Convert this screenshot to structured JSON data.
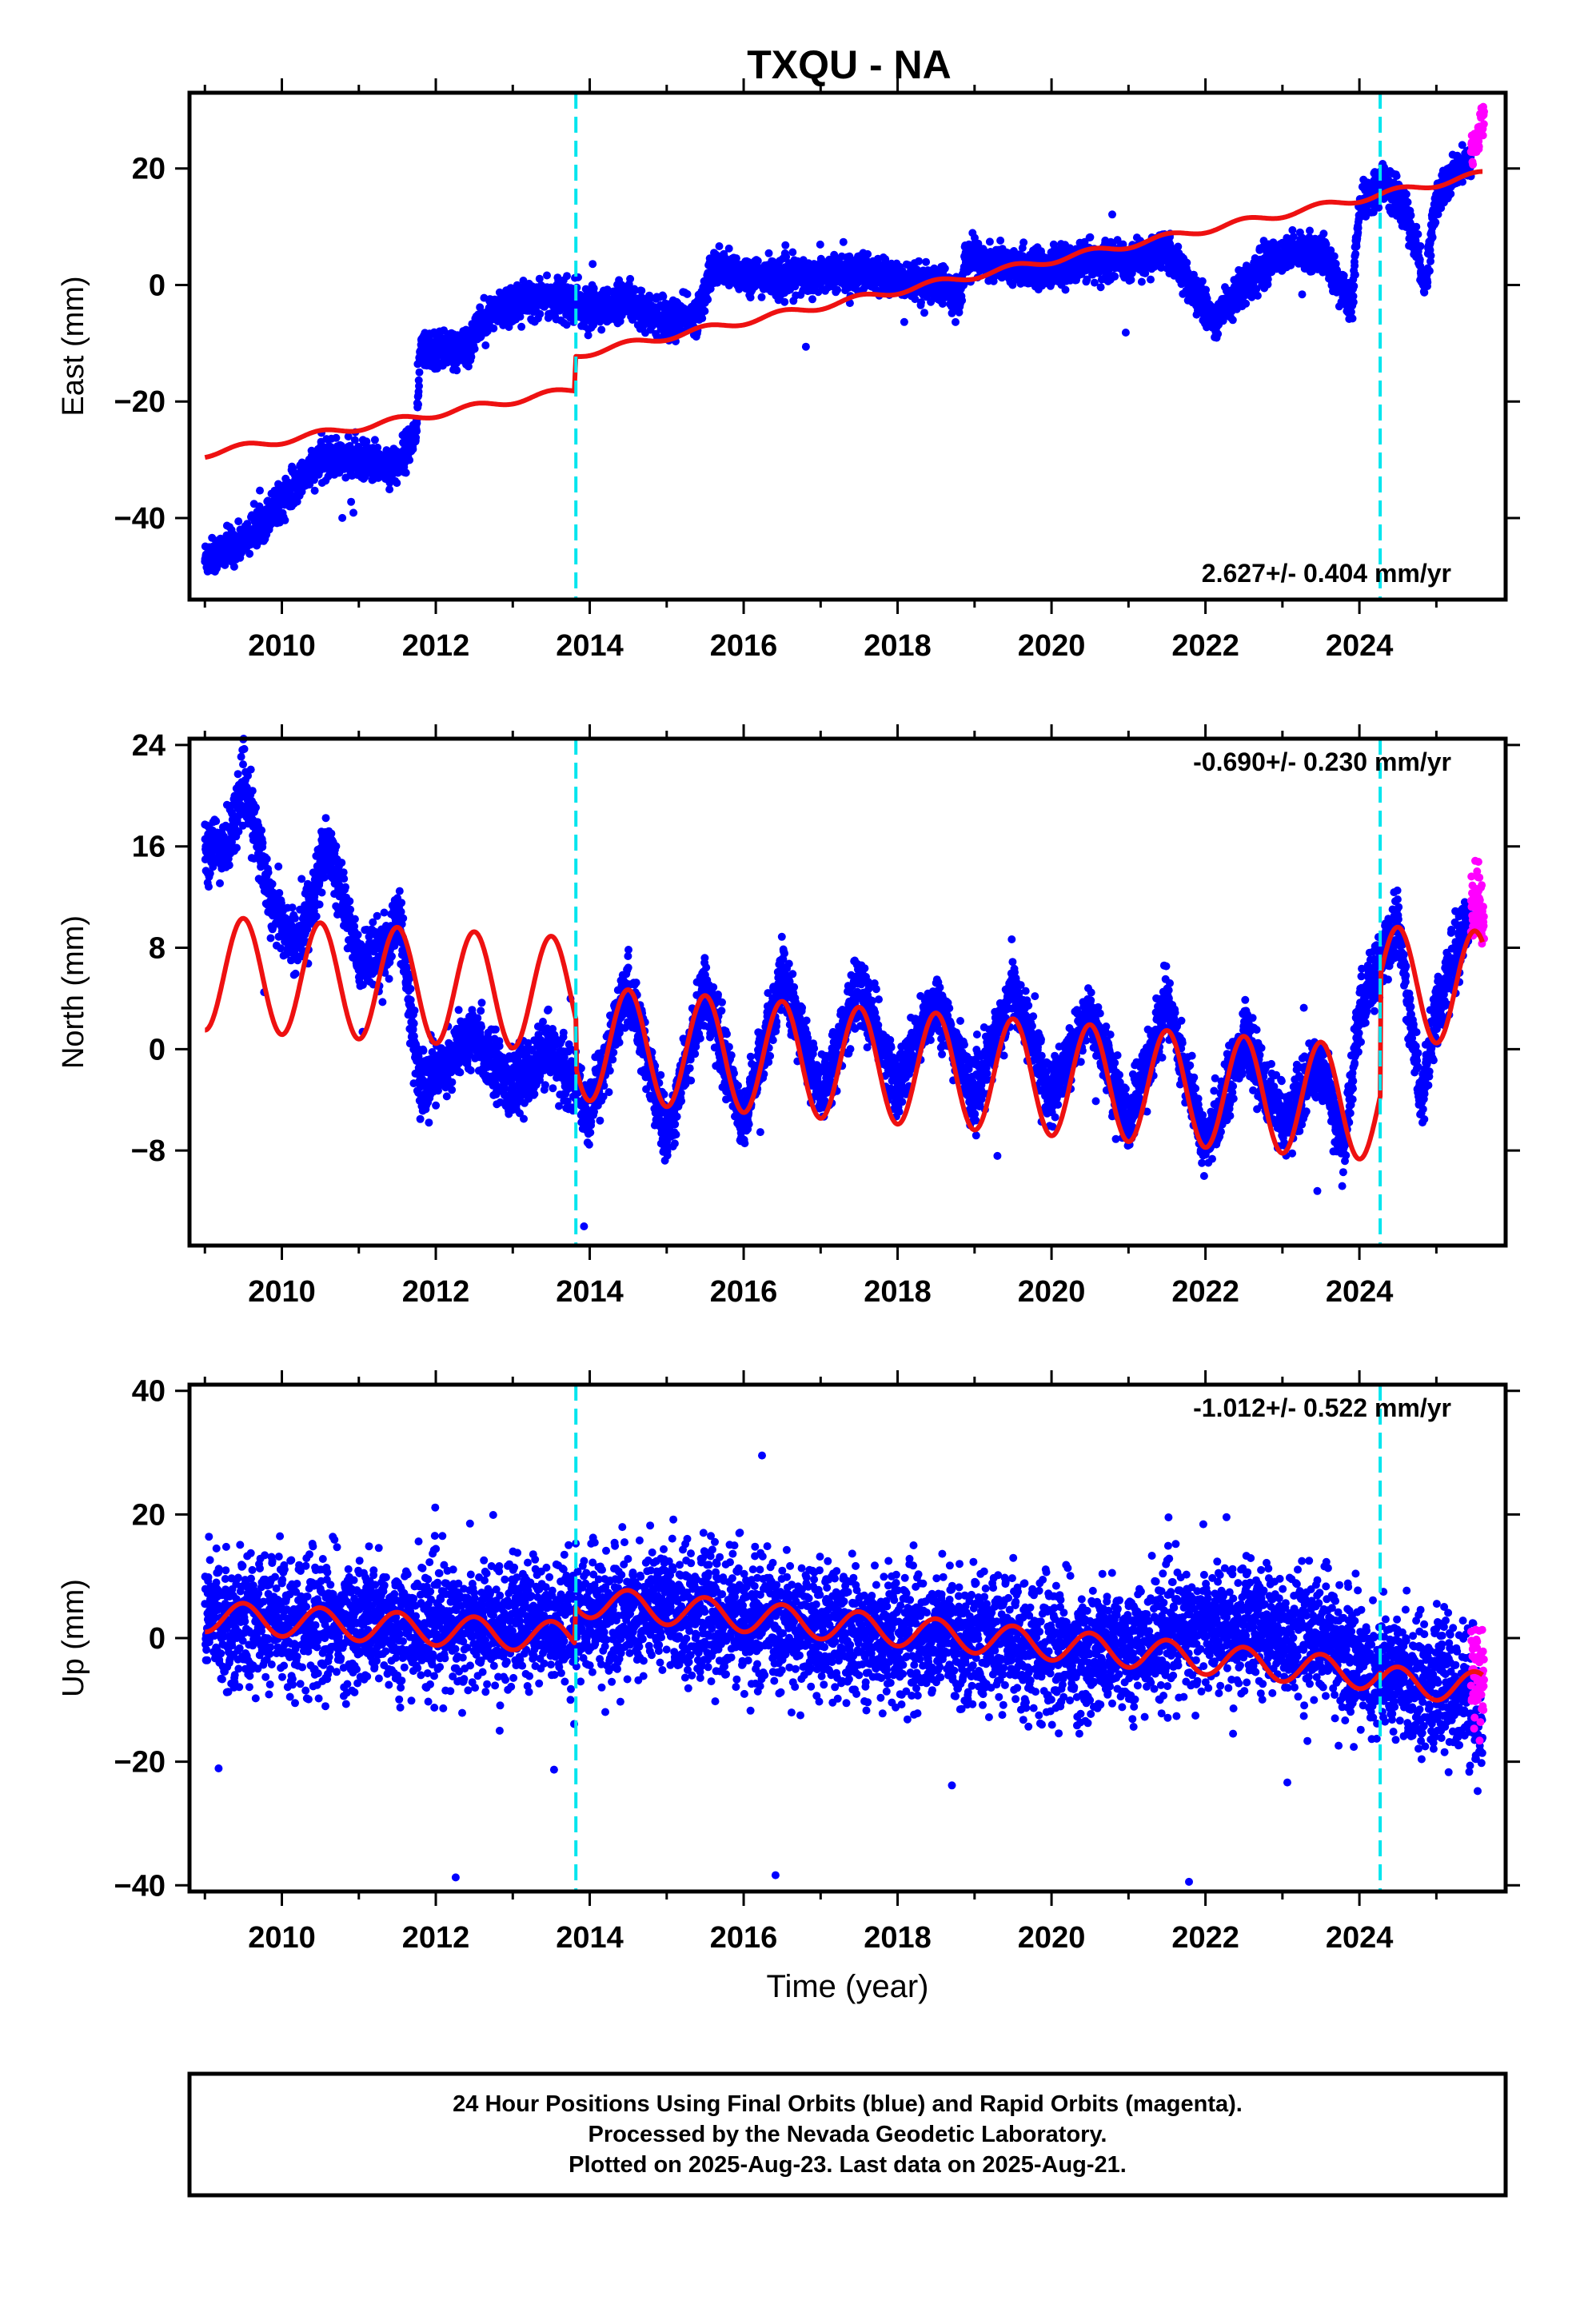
{
  "title": "TXQU - NA",
  "footer": {
    "line1": "24 Hour Positions Using Final Orbits (blue) and Rapid Orbits (magenta).",
    "line2": "Processed by the Nevada Geodetic Laboratory.",
    "line3": "Plotted on 2025-Aug-23. Last data on 2025-Aug-21."
  },
  "colors": {
    "final_orbits": "#0000ff",
    "rapid_orbits": "#ff00ff",
    "model": "#ee1111",
    "events": "#00e5ee"
  },
  "chart_data": [
    {
      "type": "scatter",
      "name": "east",
      "ylabel": "East (mm)",
      "xlabel": "",
      "xlim": [
        2008.8,
        2025.9
      ],
      "ylim": [
        -54,
        33
      ],
      "xticks": [
        2010,
        2012,
        2014,
        2016,
        2018,
        2020,
        2022,
        2024
      ],
      "xtick_labels": [
        "2010",
        "2012",
        "2014",
        "2016",
        "2018",
        "2020",
        "2022",
        "2024"
      ],
      "yticks": [
        -40,
        -20,
        0,
        20
      ],
      "ytick_labels": [
        "−40",
        "−20",
        "0",
        "20"
      ],
      "rate_label": "2.627+/- 0.404 mm/yr",
      "rate_position": "bottom-right",
      "event_lines_x": [
        2013.82,
        2024.27
      ],
      "final_trace": [
        [
          2009.0,
          -47
        ],
        [
          2009.5,
          -44
        ],
        [
          2010.0,
          -37
        ],
        [
          2010.5,
          -30
        ],
        [
          2011.0,
          -30
        ],
        [
          2011.5,
          -31
        ],
        [
          2011.75,
          -25
        ],
        [
          2011.8,
          -11
        ],
        [
          2012.4,
          -11
        ],
        [
          2012.6,
          -6
        ],
        [
          2013.0,
          -3
        ],
        [
          2013.5,
          -2
        ],
        [
          2014.0,
          -4
        ],
        [
          2014.5,
          -3
        ],
        [
          2015.0,
          -6
        ],
        [
          2015.4,
          -5
        ],
        [
          2015.6,
          3
        ],
        [
          2016.0,
          2
        ],
        [
          2016.5,
          1
        ],
        [
          2017.0,
          2
        ],
        [
          2017.5,
          2
        ],
        [
          2018.0,
          1
        ],
        [
          2018.5,
          0
        ],
        [
          2018.8,
          -2
        ],
        [
          2018.9,
          5
        ],
        [
          2019.5,
          3
        ],
        [
          2020.0,
          3
        ],
        [
          2020.5,
          4
        ],
        [
          2021.0,
          4
        ],
        [
          2021.5,
          6
        ],
        [
          2021.8,
          0
        ],
        [
          2022.1,
          -6
        ],
        [
          2022.5,
          0
        ],
        [
          2022.9,
          5
        ],
        [
          2023.5,
          6
        ],
        [
          2023.9,
          -4
        ],
        [
          2024.0,
          13
        ],
        [
          2024.3,
          18
        ],
        [
          2024.6,
          13
        ],
        [
          2024.85,
          0
        ],
        [
          2025.0,
          15
        ],
        [
          2025.3,
          20
        ],
        [
          2025.45,
          21
        ]
      ],
      "rapid_trace": [
        [
          2025.45,
          23
        ],
        [
          2025.55,
          26
        ],
        [
          2025.62,
          29
        ]
      ],
      "model_trace": [
        [
          2009.0,
          -29
        ],
        [
          2013.8,
          -18
        ],
        [
          2013.82,
          -12
        ],
        [
          2025.6,
          19
        ]
      ],
      "model_annual_amp": 0.6,
      "final_noise": 1.5,
      "rapid_noise": 1.6
    },
    {
      "type": "scatter",
      "name": "north",
      "ylabel": "North (mm)",
      "xlabel": "",
      "xlim": [
        2008.8,
        2025.9
      ],
      "ylim": [
        -15.5,
        24.5
      ],
      "xticks": [
        2010,
        2012,
        2014,
        2016,
        2018,
        2020,
        2022,
        2024
      ],
      "xtick_labels": [
        "2010",
        "2012",
        "2014",
        "2016",
        "2018",
        "2020",
        "2022",
        "2024"
      ],
      "yticks": [
        -8,
        0,
        8,
        16,
        24
      ],
      "ytick_labels": [
        "−8",
        "0",
        "8",
        "16",
        "24"
      ],
      "rate_label": "-0.690+/- 0.230 mm/yr",
      "rate_position": "top-right",
      "event_lines_x": [
        2013.82,
        2024.27
      ],
      "final_trace": [
        [
          2009.0,
          16
        ],
        [
          2009.3,
          16
        ],
        [
          2009.5,
          21
        ],
        [
          2009.9,
          11
        ],
        [
          2010.2,
          8
        ],
        [
          2010.6,
          16
        ],
        [
          2011.0,
          7
        ],
        [
          2011.4,
          8
        ],
        [
          2011.5,
          11
        ],
        [
          2011.8,
          -3
        ],
        [
          2012.5,
          1
        ],
        [
          2013.0,
          -3
        ],
        [
          2013.5,
          0
        ],
        [
          2014.0,
          -5
        ],
        [
          2014.5,
          5
        ],
        [
          2015.0,
          -7
        ],
        [
          2015.5,
          5
        ],
        [
          2016.0,
          -6
        ],
        [
          2016.5,
          6
        ],
        [
          2017.0,
          -4
        ],
        [
          2017.5,
          5
        ],
        [
          2018.0,
          -3
        ],
        [
          2018.5,
          4
        ],
        [
          2019.0,
          -4
        ],
        [
          2019.5,
          5
        ],
        [
          2020.0,
          -4
        ],
        [
          2020.5,
          3
        ],
        [
          2021.0,
          -6
        ],
        [
          2021.5,
          4
        ],
        [
          2022.0,
          -8
        ],
        [
          2022.5,
          1
        ],
        [
          2023.0,
          -6
        ],
        [
          2023.5,
          -1
        ],
        [
          2023.8,
          -8
        ],
        [
          2024.0,
          3
        ],
        [
          2024.5,
          10
        ],
        [
          2024.8,
          -4
        ],
        [
          2025.0,
          3
        ],
        [
          2025.45,
          11
        ]
      ],
      "rapid_trace": [
        [
          2025.45,
          11
        ],
        [
          2025.55,
          12
        ],
        [
          2025.62,
          9
        ]
      ],
      "model_trace": [
        [
          2009.0,
          6
        ],
        [
          2013.82,
          4.3
        ],
        [
          2013.82,
          0.5
        ],
        [
          2024.27,
          -4.3
        ],
        [
          2024.27,
          5.2
        ],
        [
          2025.6,
          4.8
        ]
      ],
      "model_annual_amp": 4.5,
      "final_noise": 1.2,
      "rapid_noise": 1.4
    },
    {
      "type": "scatter",
      "name": "up",
      "ylabel": "Up (mm)",
      "xlabel": "Time (year)",
      "xlim": [
        2008.8,
        2025.9
      ],
      "ylim": [
        -41,
        41
      ],
      "xticks": [
        2010,
        2012,
        2014,
        2016,
        2018,
        2020,
        2022,
        2024
      ],
      "xtick_labels": [
        "2010",
        "2012",
        "2014",
        "2016",
        "2018",
        "2020",
        "2022",
        "2024"
      ],
      "yticks": [
        -40,
        -20,
        0,
        20,
        40
      ],
      "ytick_labels": [
        "−40",
        "−20",
        "0",
        "20",
        "40"
      ],
      "rate_label": "-1.012+/- 0.522 mm/yr",
      "rate_position": "top-right",
      "event_lines_x": [
        2013.82,
        2024.27
      ],
      "final_trace": [
        [
          2009.0,
          3
        ],
        [
          2011.0,
          2
        ],
        [
          2013.0,
          2
        ],
        [
          2013.82,
          3
        ],
        [
          2015.0,
          5
        ],
        [
          2017.0,
          1
        ],
        [
          2019.0,
          0
        ],
        [
          2020.5,
          -3
        ],
        [
          2022.0,
          2
        ],
        [
          2023.5,
          0
        ],
        [
          2024.27,
          -6
        ],
        [
          2025.3,
          -8
        ],
        [
          2025.6,
          -14
        ]
      ],
      "rapid_trace": [
        [
          2025.45,
          -6
        ],
        [
          2025.62,
          -8
        ]
      ],
      "model_trace": [
        [
          2009.0,
          3.5
        ],
        [
          2013.8,
          0
        ],
        [
          2013.82,
          6
        ],
        [
          2024.27,
          -6
        ],
        [
          2024.27,
          -7
        ],
        [
          2025.6,
          -8
        ]
      ],
      "model_annual_amp": 2.5,
      "final_noise": 5,
      "rapid_noise": 4
    }
  ]
}
